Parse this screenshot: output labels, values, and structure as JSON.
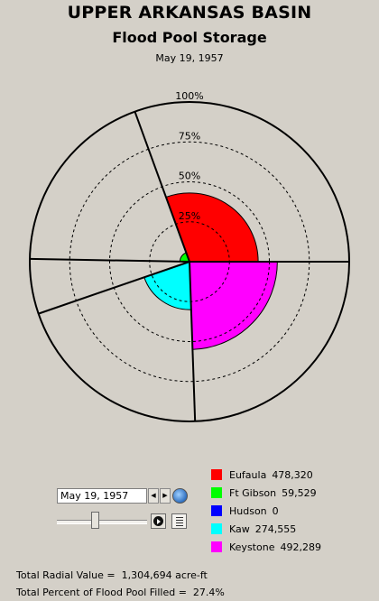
{
  "title": "UPPER ARKANSAS BASIN",
  "subtitle": "Flood Pool Storage",
  "date": "May 19, 1957",
  "chart_data": {
    "type": "polar-area",
    "rings": [
      {
        "label": "25%",
        "value": 0.25,
        "style": "dashed"
      },
      {
        "label": "50%",
        "value": 0.5,
        "style": "dashed"
      },
      {
        "label": "75%",
        "value": 0.75,
        "style": "dashed"
      },
      {
        "label": "100%",
        "value": 1.0,
        "style": "solid"
      }
    ],
    "series": [
      {
        "name": "Eufaula",
        "value": 478320,
        "value_label": "478,320",
        "color": "#ff0000",
        "fraction_filled": 0.43,
        "sector_start_deg": 0,
        "sector_end_deg": 110
      },
      {
        "name": "Ft Gibson",
        "value": 59529,
        "value_label": "59,529",
        "color": "#00ff00",
        "fraction_filled": 0.06,
        "sector_start_deg": 110,
        "sector_end_deg": 179
      },
      {
        "name": "Hudson",
        "value": 0,
        "value_label": "0",
        "color": "#0000ff",
        "fraction_filled": 0.0,
        "sector_start_deg": 179,
        "sector_end_deg": 199
      },
      {
        "name": "Kaw",
        "value": 274555,
        "value_label": "274,555",
        "color": "#00ffff",
        "fraction_filled": 0.3,
        "sector_start_deg": 199,
        "sector_end_deg": 272
      },
      {
        "name": "Keystone",
        "value": 492289,
        "value_label": "492,289",
        "color": "#ff00ff",
        "fraction_filled": 0.55,
        "sector_start_deg": 272,
        "sector_end_deg": 360
      }
    ]
  },
  "controls": {
    "date_value": "May 19, 1957",
    "slider_position": 0.42
  },
  "totals": {
    "radial_label": "Total Radial Value =",
    "radial_value": "1,304,694 acre-ft",
    "percent_label": "Total Percent of Flood Pool Filled =",
    "percent_value": "27.4%"
  }
}
